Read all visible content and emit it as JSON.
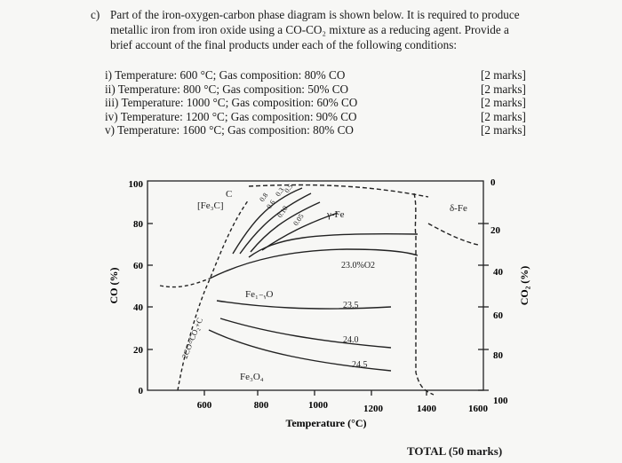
{
  "question": {
    "label": "c)",
    "lines": [
      "Part of the iron-oxygen-carbon phase diagram is shown below. It is required to produce",
      "metallic iron from iron oxide using a CO-CO₂ mixture as a reducing agent. Provide a",
      "brief account of the final products under each of the following conditions:"
    ]
  },
  "conditions": [
    {
      "text": "i) Temperature: 600 °C; Gas composition: 80% CO",
      "marks": "[2 marks]"
    },
    {
      "text": "ii) Temperature: 800 °C; Gas composition: 50% CO",
      "marks": "[2 marks]"
    },
    {
      "text": "iii) Temperature: 1000 °C; Gas composition: 60% CO",
      "marks": "[2 marks]"
    },
    {
      "text": "iv) Temperature: 1200 °C; Gas composition: 90% CO",
      "marks": "[2 marks]"
    },
    {
      "text": "v) Temperature: 1600 °C; Gas composition: 80% CO",
      "marks": "[2 marks]"
    }
  ],
  "diagram": {
    "y_left_title": "CO (%)",
    "y_right_title": "CO₂ (%)",
    "x_title": "Temperature (°C)",
    "y_left_ticks": [
      "100",
      "80",
      "60",
      "40",
      "20",
      "0"
    ],
    "y_right_ticks": [
      "0",
      "20",
      "40",
      "60",
      "80",
      "100"
    ],
    "x_ticks": [
      "600",
      "800",
      "1000",
      "1200",
      "1400",
      "1600"
    ],
    "region_labels": {
      "fe3c": "[Fe₃C]",
      "c": "C",
      "gamma_fe": "γ-Fe",
      "delta_fe": "δ-Fe",
      "wustite": "Fe₁₋ᵧO",
      "magnetite": "Fe₃O₄",
      "boudouard": "2CO=CO₂+C"
    },
    "curve_labels": [
      "23.0%O2",
      "23.5",
      "24.0",
      "24.5"
    ],
    "carbon_activity_labels": [
      "0.8",
      "0.6",
      "0.10",
      "0.05",
      "0.3",
      "0.5"
    ]
  },
  "total": "TOTAL (50 marks)"
}
